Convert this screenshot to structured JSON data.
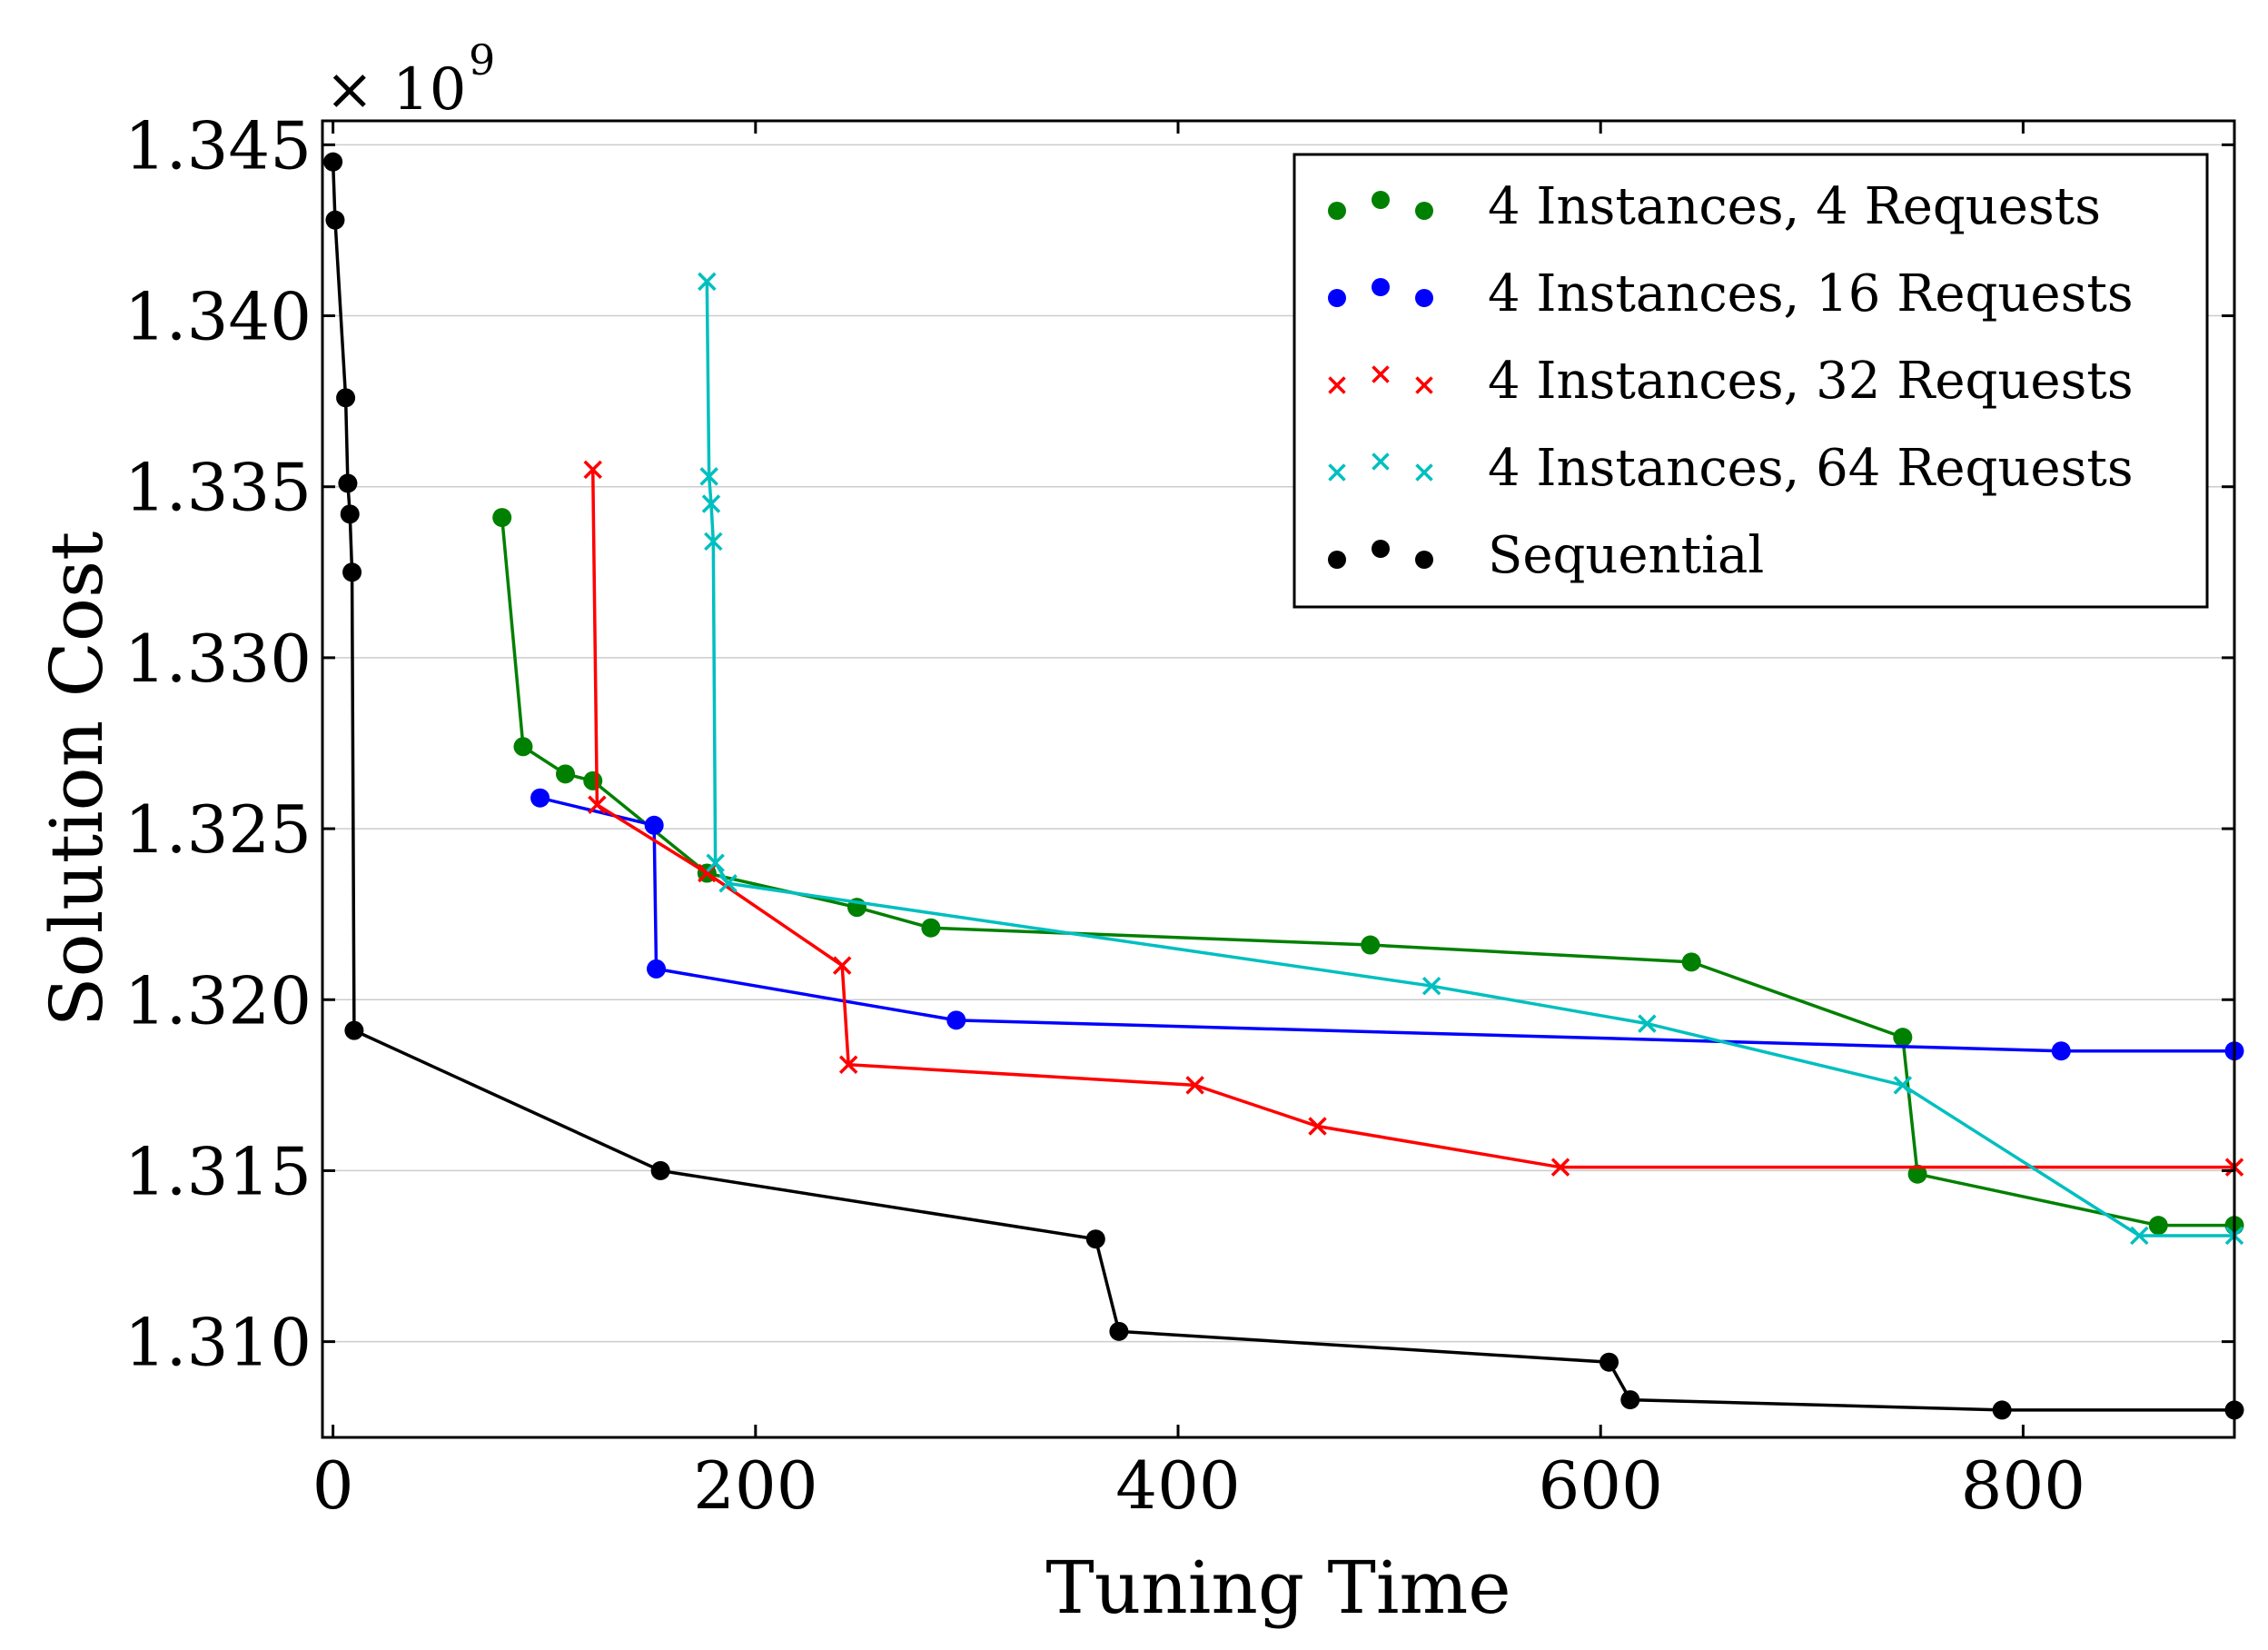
{
  "chart_data": {
    "type": "line",
    "xlabel": "Tuning Time",
    "ylabel": "Solution Cost",
    "y_multiplier": "× 10",
    "y_exponent": "9",
    "xlim": [
      -5,
      900
    ],
    "ylim": [
      1.3072,
      1.3457
    ],
    "xticks": [
      0,
      200,
      400,
      600,
      800
    ],
    "xtick_labels": [
      "0",
      "200",
      "400",
      "600",
      "800"
    ],
    "yticks": [
      1.31,
      1.315,
      1.32,
      1.325,
      1.33,
      1.335,
      1.34,
      1.345
    ],
    "ytick_labels": [
      "1.310",
      "1.315",
      "1.320",
      "1.325",
      "1.330",
      "1.335",
      "1.340",
      "1.345"
    ],
    "grid": "horizontal",
    "legend_position": "top-right",
    "series": [
      {
        "name": "4 Instances, 4 Requests",
        "color": "#008000",
        "marker": "circle",
        "x": [
          80,
          90,
          110,
          123,
          177,
          248,
          283,
          491,
          643,
          743,
          750,
          864,
          900
        ],
        "y": [
          1.3341,
          1.3274,
          1.3266,
          1.3264,
          1.3237,
          1.3227,
          1.3221,
          1.3216,
          1.3211,
          1.3189,
          1.3149,
          1.3134,
          1.3134
        ]
      },
      {
        "name": "4 Instances, 16 Requests",
        "color": "#0000ff",
        "marker": "circle",
        "x": [
          98,
          152,
          153,
          295,
          818,
          900
        ],
        "y": [
          1.3259,
          1.3251,
          1.3209,
          1.3194,
          1.3185,
          1.3185
        ]
      },
      {
        "name": "4 Instances, 32 Requests",
        "color": "#ff0000",
        "marker": "x",
        "x": [
          123,
          125,
          177,
          241,
          244,
          408,
          466,
          581,
          900
        ],
        "y": [
          1.3355,
          1.3257,
          1.3237,
          1.321,
          1.3181,
          1.3175,
          1.3163,
          1.3151,
          1.3151
        ]
      },
      {
        "name": "4 Instances, 64 Requests",
        "color": "#00bfbf",
        "marker": "x",
        "x": [
          177,
          178,
          179,
          180,
          181,
          187,
          520,
          622,
          743,
          855,
          900
        ],
        "y": [
          1.341,
          1.3353,
          1.3345,
          1.3334,
          1.324,
          1.3234,
          1.3204,
          1.3193,
          1.3175,
          1.3131,
          1.3131
        ]
      },
      {
        "name": "Sequential",
        "color": "#000000",
        "marker": "circle",
        "x": [
          0,
          1,
          6,
          7,
          8,
          9,
          10,
          155,
          361,
          372,
          604,
          614,
          790,
          900
        ],
        "y": [
          1.3445,
          1.3428,
          1.3376,
          1.3351,
          1.3342,
          1.3325,
          1.3191,
          1.315,
          1.313,
          1.3103,
          1.3094,
          1.3083,
          1.308,
          1.308
        ]
      }
    ]
  }
}
